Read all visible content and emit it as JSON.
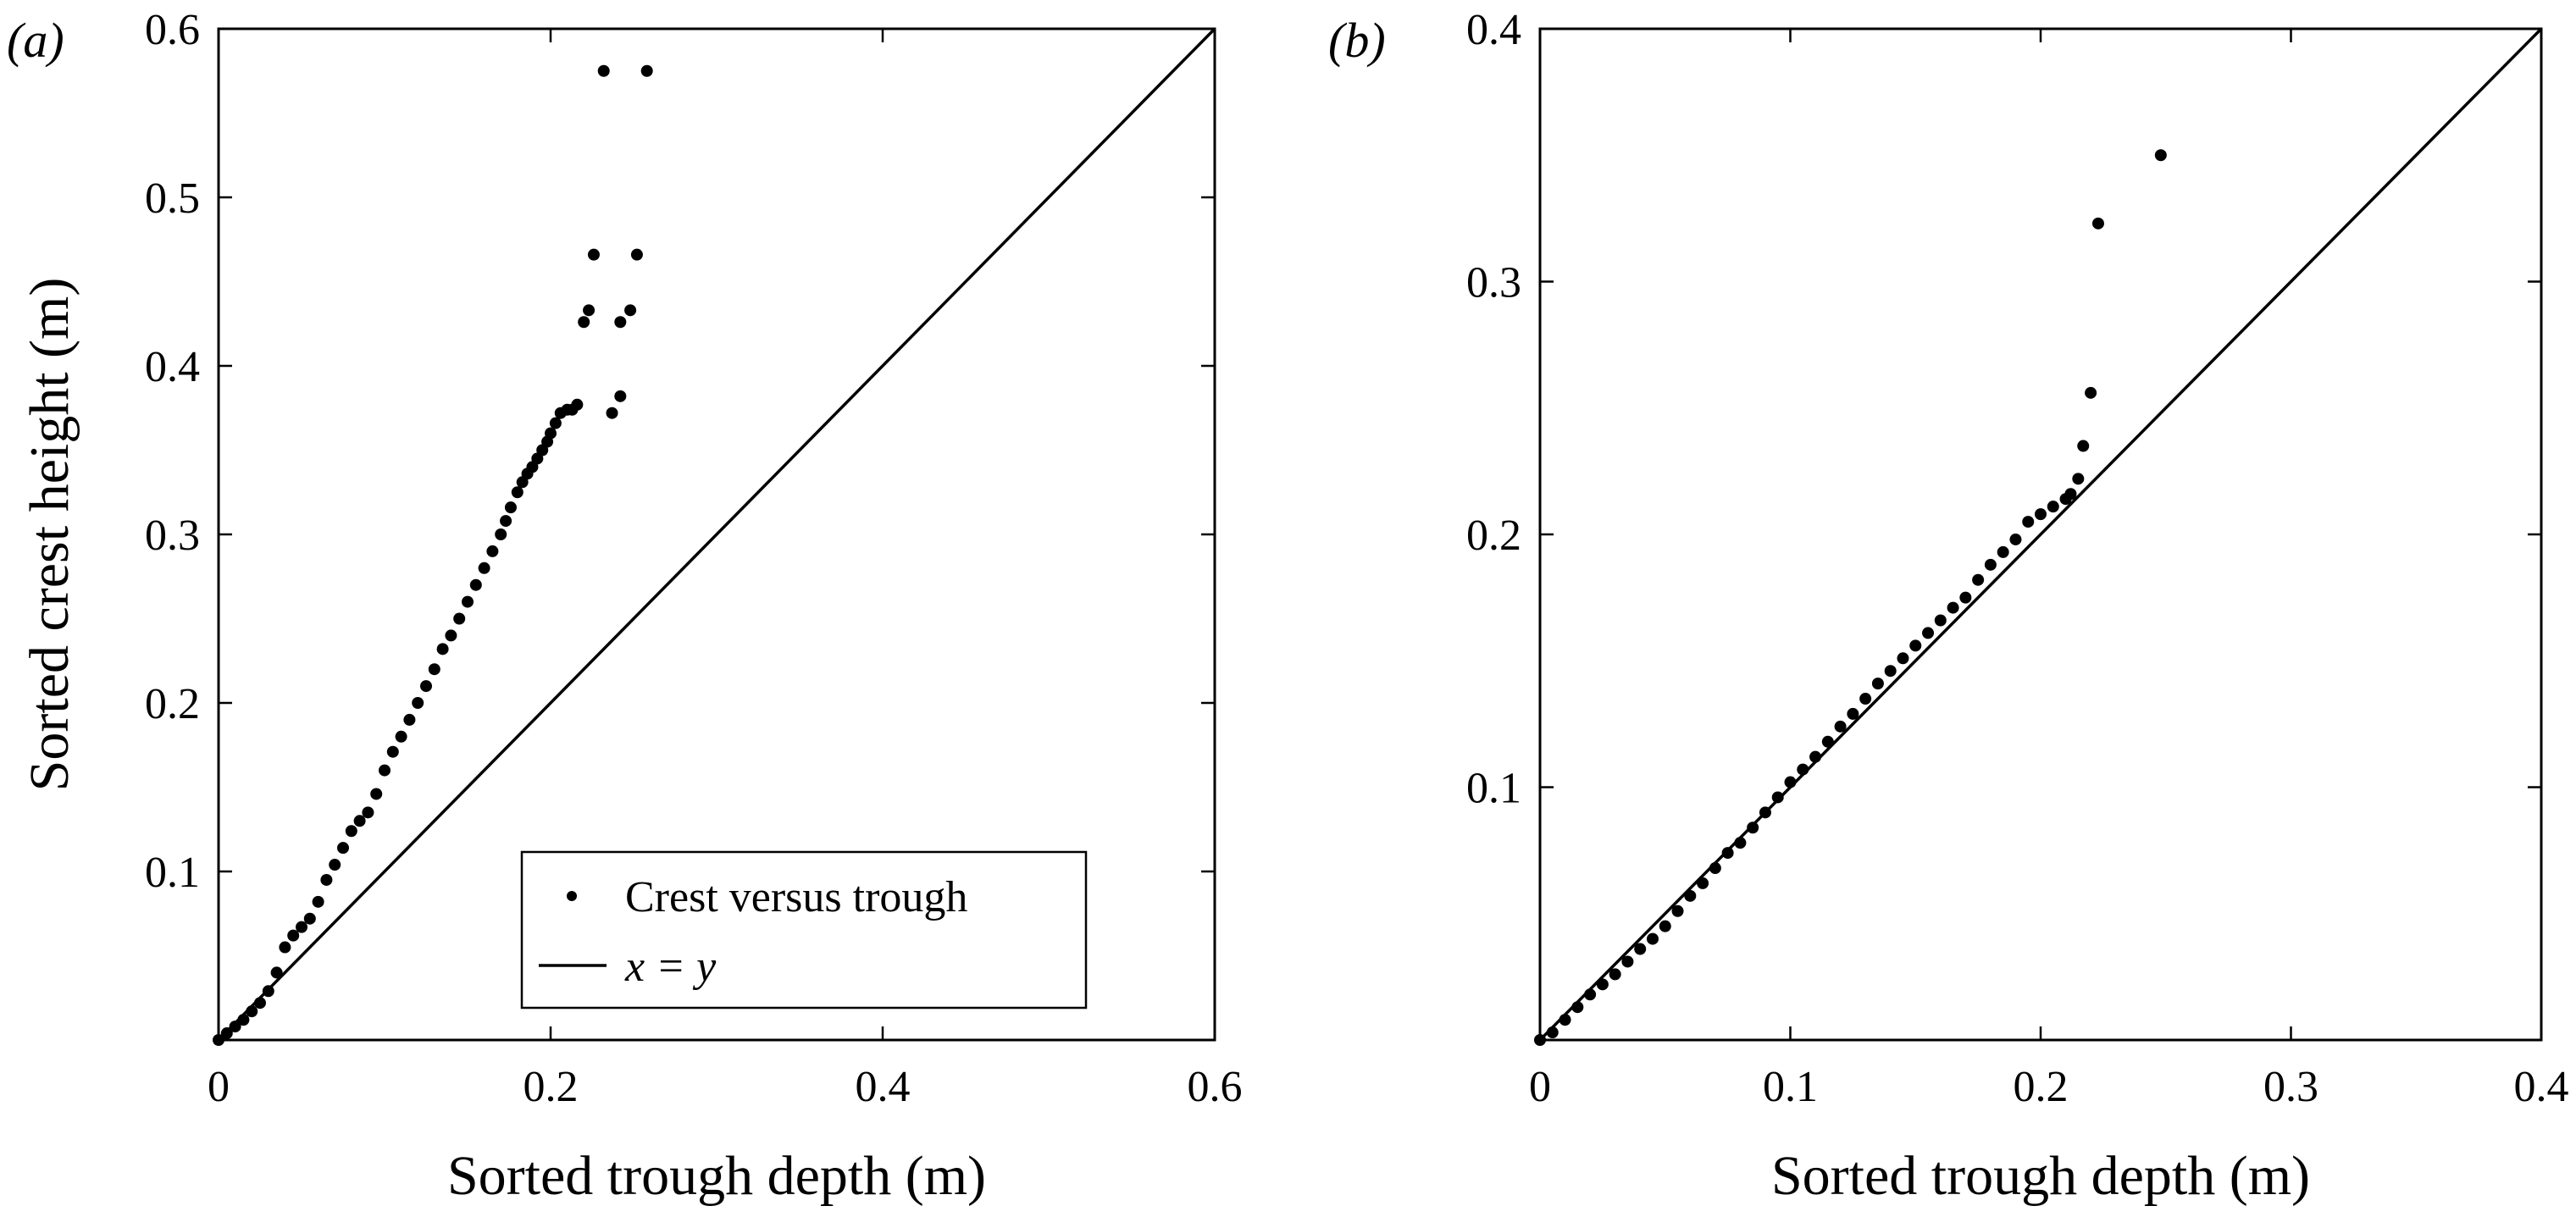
{
  "chart_data": [
    {
      "type": "scatter",
      "panel_label": "(a)",
      "xlabel": "Sorted trough depth (m)",
      "ylabel": "Sorted crest height (m)",
      "xlim": [
        0,
        0.6
      ],
      "ylim": [
        0,
        0.6
      ],
      "x_ticks": [
        0,
        0.2,
        0.4,
        0.6
      ],
      "x_tick_labels": [
        "0",
        "0.2",
        "0.4",
        "0.6"
      ],
      "y_ticks": [
        0.1,
        0.2,
        0.3,
        0.4,
        0.5,
        0.6
      ],
      "y_tick_labels": [
        "0.1",
        "0.2",
        "0.3",
        "0.4",
        "0.5",
        "0.6"
      ],
      "grid": false,
      "legend": {
        "position": "bottom-right",
        "entries": [
          {
            "label": "Crest versus trough",
            "marker": "dot"
          },
          {
            "label": "x = y",
            "marker": "line"
          }
        ]
      },
      "series": [
        {
          "kind": "scatter",
          "x": [
            0.0,
            0.005,
            0.01,
            0.015,
            0.02,
            0.025,
            0.03,
            0.035,
            0.04,
            0.045,
            0.05,
            0.055,
            0.06,
            0.065,
            0.07,
            0.075,
            0.08,
            0.085,
            0.09,
            0.095,
            0.1,
            0.105,
            0.11,
            0.115,
            0.12,
            0.125,
            0.13,
            0.135,
            0.14,
            0.145,
            0.15,
            0.155,
            0.16,
            0.165,
            0.17,
            0.173,
            0.176,
            0.18,
            0.183,
            0.186,
            0.189,
            0.192,
            0.195,
            0.198,
            0.2,
            0.203,
            0.206,
            0.21,
            0.213,
            0.216,
            0.22,
            0.223,
            0.226,
            0.232,
            0.237,
            0.242,
            0.242,
            0.248,
            0.252,
            0.258
          ],
          "y": [
            0.0,
            0.004,
            0.008,
            0.012,
            0.017,
            0.022,
            0.029,
            0.04,
            0.055,
            0.062,
            0.067,
            0.072,
            0.082,
            0.095,
            0.104,
            0.114,
            0.124,
            0.13,
            0.135,
            0.146,
            0.16,
            0.171,
            0.18,
            0.19,
            0.2,
            0.21,
            0.22,
            0.232,
            0.24,
            0.25,
            0.26,
            0.27,
            0.28,
            0.29,
            0.3,
            0.308,
            0.316,
            0.325,
            0.331,
            0.336,
            0.34,
            0.345,
            0.35,
            0.355,
            0.36,
            0.366,
            0.372,
            0.374,
            0.374,
            0.377,
            0.426,
            0.433,
            0.466,
            0.575,
            0.372,
            0.382,
            0.426,
            0.433,
            0.466,
            0.575
          ]
        },
        {
          "kind": "line",
          "x": [
            0,
            0.6
          ],
          "y": [
            0,
            0.6
          ]
        }
      ]
    },
    {
      "type": "scatter",
      "panel_label": "(b)",
      "xlabel": "Sorted trough depth (m)",
      "ylabel": "",
      "xlim": [
        0,
        0.4
      ],
      "ylim": [
        0,
        0.4
      ],
      "x_ticks": [
        0,
        0.1,
        0.2,
        0.3,
        0.4
      ],
      "x_tick_labels": [
        "0",
        "0.1",
        "0.2",
        "0.3",
        "0.4"
      ],
      "y_ticks": [
        0.1,
        0.2,
        0.3,
        0.4
      ],
      "y_tick_labels": [
        "0.1",
        "0.2",
        "0.3",
        "0.4"
      ],
      "grid": false,
      "series": [
        {
          "kind": "scatter",
          "x": [
            0.0,
            0.005,
            0.01,
            0.015,
            0.02,
            0.025,
            0.03,
            0.035,
            0.04,
            0.045,
            0.05,
            0.055,
            0.06,
            0.065,
            0.07,
            0.075,
            0.08,
            0.085,
            0.09,
            0.095,
            0.1,
            0.105,
            0.11,
            0.115,
            0.12,
            0.125,
            0.13,
            0.135,
            0.14,
            0.145,
            0.15,
            0.155,
            0.16,
            0.165,
            0.17,
            0.175,
            0.18,
            0.185,
            0.19,
            0.195,
            0.2,
            0.205,
            0.21,
            0.212,
            0.215,
            0.217,
            0.22,
            0.223,
            0.248
          ],
          "y": [
            0.0,
            0.003,
            0.008,
            0.013,
            0.018,
            0.022,
            0.026,
            0.031,
            0.036,
            0.04,
            0.045,
            0.051,
            0.057,
            0.062,
            0.068,
            0.074,
            0.078,
            0.084,
            0.09,
            0.096,
            0.102,
            0.107,
            0.112,
            0.118,
            0.124,
            0.129,
            0.135,
            0.141,
            0.146,
            0.151,
            0.156,
            0.161,
            0.166,
            0.171,
            0.175,
            0.182,
            0.188,
            0.193,
            0.198,
            0.205,
            0.208,
            0.211,
            0.214,
            0.216,
            0.222,
            0.235,
            0.256,
            0.323,
            0.35
          ]
        },
        {
          "kind": "line",
          "x": [
            0,
            0.4
          ],
          "y": [
            0,
            0.4
          ]
        }
      ]
    }
  ]
}
